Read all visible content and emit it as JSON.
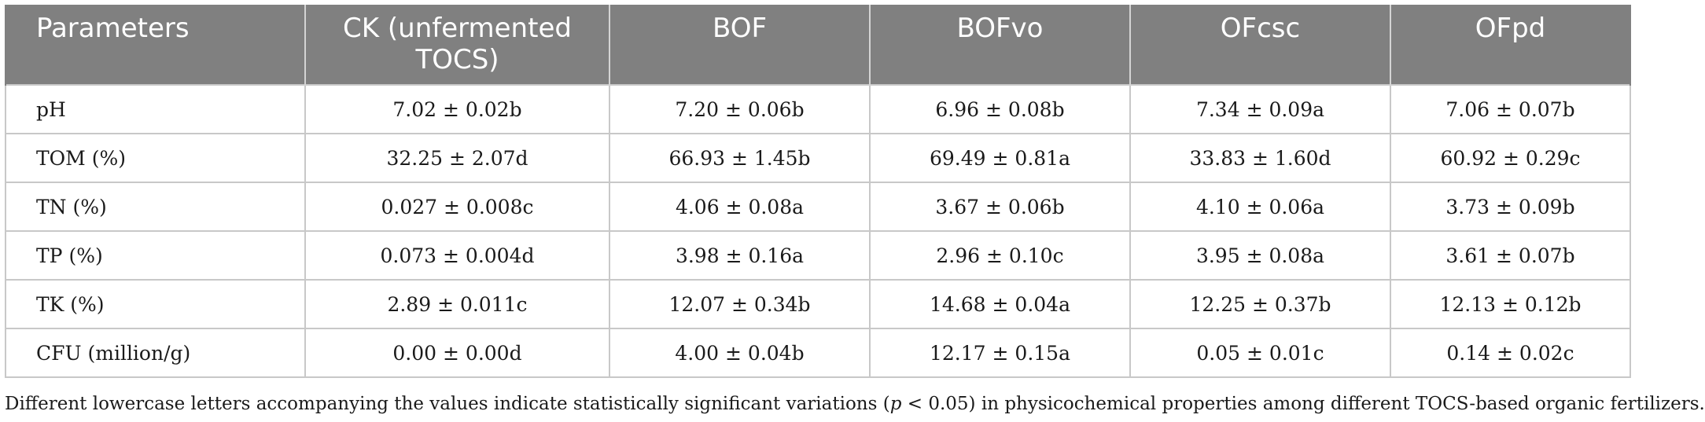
{
  "table": {
    "headers": [
      "Parameters",
      "CK (unfermented TOCS)",
      "BOF",
      "BOFvo",
      "OFcsc",
      "OFpd"
    ],
    "rows": [
      [
        "pH",
        "7.02 ± 0.02b",
        "7.20 ± 0.06b",
        "6.96 ± 0.08b",
        "7.34 ± 0.09a",
        "7.06 ± 0.07b"
      ],
      [
        "TOM (%)",
        "32.25 ± 2.07d",
        "66.93 ± 1.45b",
        "69.49 ± 0.81a",
        "33.83 ± 1.60d",
        "60.92 ± 0.29c"
      ],
      [
        "TN (%)",
        "0.027 ± 0.008c",
        "4.06 ± 0.08a",
        "3.67 ± 0.06b",
        "4.10 ± 0.06a",
        "3.73 ± 0.09b"
      ],
      [
        "TP (%)",
        "0.073 ± 0.004d",
        "3.98 ± 0.16a",
        "2.96 ± 0.10c",
        "3.95 ± 0.08a",
        "3.61 ± 0.07b"
      ],
      [
        "TK (%)",
        "2.89 ± 0.011c",
        "12.07 ± 0.34b",
        "14.68 ± 0.04a",
        "12.25 ± 0.37b",
        "12.13 ± 0.12b"
      ],
      [
        "CFU (million/g)",
        "0.00 ± 0.00d",
        "4.00 ± 0.04b",
        "12.17 ± 0.15a",
        "0.05 ± 0.01c",
        "0.14 ± 0.02c"
      ]
    ]
  },
  "footnote": {
    "before": "Different lowercase letters accompanying the values indicate statistically significant variations (",
    "italic": "p",
    "after": " < 0.05) in physicochemical properties among different TOCS-based organic fertilizers."
  },
  "colors": {
    "header_bg": "#808080",
    "header_text": "#ffffff",
    "cell_border": "#c8c8c8"
  }
}
